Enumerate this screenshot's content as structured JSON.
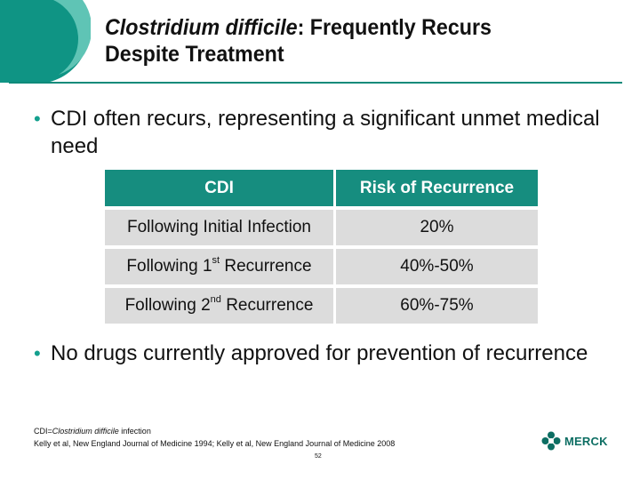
{
  "title": {
    "italic_part": "Clostridium difficile",
    "rest_line1": ": Frequently Recurs",
    "line2": "Despite Treatment"
  },
  "bullets": [
    {
      "text": "CDI often recurs, representing a significant unmet medical need"
    },
    {
      "text": "No drugs currently approved for prevention of recurrence"
    }
  ],
  "table": {
    "headers": [
      "CDI",
      "Risk of Recurrence"
    ],
    "rows": [
      {
        "label_pre": "Following Initial Infection",
        "label_sup": "",
        "label_post": "",
        "value": "20%"
      },
      {
        "label_pre": "Following 1",
        "label_sup": "st",
        "label_post": " Recurrence",
        "value": "40%-50%"
      },
      {
        "label_pre": "Following 2",
        "label_sup": "nd",
        "label_post": " Recurrence",
        "value": "60%-75%"
      }
    ]
  },
  "footnotes": {
    "abbrev_pre": "CDI=",
    "abbrev_italic": "Clostridium difficile",
    "abbrev_post": " infection",
    "references": "Kelly et al, New England Journal of Medicine 1994; Kelly et al, New England Journal of Medicine 2008"
  },
  "page_number": "52",
  "logo": {
    "text": "MERCK",
    "icon": "merck-logo-icon"
  },
  "colors": {
    "accent": "#168d7f",
    "rule": "#0f8a7a",
    "cell": "#dcdcdc",
    "bullet": "#14a08e"
  }
}
